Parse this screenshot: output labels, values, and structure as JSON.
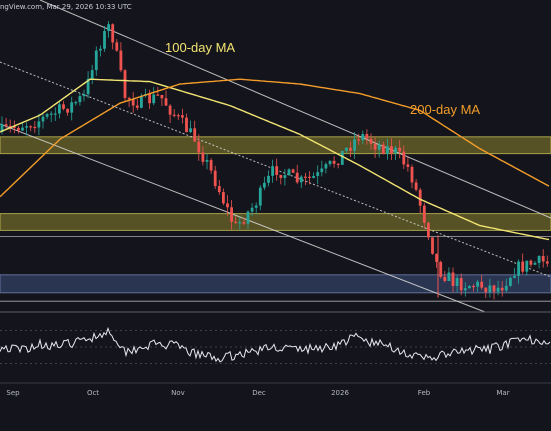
{
  "header": {
    "source_text": "ngView.com, Mar 29, 2026 10:33 UTC"
  },
  "colors": {
    "background": "#14151c",
    "candle_up": "#26a69a",
    "candle_down": "#ef5350",
    "ma100": "#f2e472",
    "ma200": "#f39c2a",
    "zone_supply": "#8c8530",
    "zone_demand": "#3d5180",
    "channel_line": "#d9d9d9",
    "rsi_line": "#e8eaf0"
  },
  "chart_data": {
    "type": "candlestick",
    "title": "",
    "xlabel": "",
    "ylabel": "",
    "grid": false,
    "x_axis": {
      "tick_labels": [
        "Sep",
        "Oct",
        "Nov",
        "Dec",
        "2026",
        "Feb",
        "Mar"
      ]
    },
    "annotations": [
      {
        "text": "100-day MA",
        "color": "#f2e472"
      },
      {
        "text": "200-day MA",
        "color": "#f39c2a"
      }
    ],
    "price_trend_anchors": [
      [
        0,
        0.55
      ],
      [
        22,
        0.52
      ],
      [
        40,
        0.5
      ],
      [
        55,
        0.47
      ],
      [
        70,
        0.44
      ],
      [
        85,
        0.4
      ],
      [
        95,
        0.22
      ],
      [
        110,
        0.1
      ],
      [
        125,
        0.4
      ],
      [
        140,
        0.43
      ],
      [
        160,
        0.4
      ],
      [
        175,
        0.48
      ],
      [
        195,
        0.58
      ],
      [
        215,
        0.75
      ],
      [
        235,
        0.95
      ],
      [
        255,
        0.85
      ],
      [
        275,
        0.7
      ],
      [
        300,
        0.76
      ],
      [
        320,
        0.73
      ],
      [
        340,
        0.65
      ],
      [
        360,
        0.56
      ],
      [
        375,
        0.6
      ],
      [
        395,
        0.63
      ],
      [
        410,
        0.71
      ],
      [
        428,
        0.96
      ],
      [
        438,
        1.12
      ],
      [
        455,
        1.18
      ],
      [
        480,
        1.19
      ],
      [
        500,
        1.2
      ],
      [
        515,
        1.12
      ],
      [
        530,
        1.1
      ],
      [
        545,
        1.09
      ],
      [
        551,
        1.11
      ]
    ],
    "rsi_trend_anchors": [
      [
        0,
        0.5
      ],
      [
        20,
        0.45
      ],
      [
        40,
        0.55
      ],
      [
        60,
        0.52
      ],
      [
        80,
        0.6
      ],
      [
        100,
        0.72
      ],
      [
        110,
        0.78
      ],
      [
        125,
        0.42
      ],
      [
        140,
        0.5
      ],
      [
        155,
        0.55
      ],
      [
        175,
        0.52
      ],
      [
        195,
        0.38
      ],
      [
        220,
        0.3
      ],
      [
        240,
        0.38
      ],
      [
        260,
        0.45
      ],
      [
        275,
        0.5
      ],
      [
        300,
        0.46
      ],
      [
        320,
        0.48
      ],
      [
        340,
        0.55
      ],
      [
        355,
        0.68
      ],
      [
        370,
        0.58
      ],
      [
        390,
        0.52
      ],
      [
        405,
        0.4
      ],
      [
        420,
        0.3
      ],
      [
        435,
        0.33
      ],
      [
        450,
        0.38
      ],
      [
        470,
        0.44
      ],
      [
        490,
        0.46
      ],
      [
        505,
        0.55
      ],
      [
        520,
        0.6
      ],
      [
        535,
        0.63
      ],
      [
        545,
        0.62
      ],
      [
        551,
        0.6
      ]
    ],
    "ma100_anchors": [
      [
        0,
        0.55
      ],
      [
        40,
        0.48
      ],
      [
        90,
        0.33
      ],
      [
        150,
        0.34
      ],
      [
        230,
        0.44
      ],
      [
        300,
        0.56
      ],
      [
        360,
        0.69
      ],
      [
        420,
        0.83
      ],
      [
        480,
        0.94
      ],
      [
        551,
        1.0
      ]
    ],
    "ma200_anchors": [
      [
        0,
        0.82
      ],
      [
        60,
        0.58
      ],
      [
        120,
        0.43
      ],
      [
        180,
        0.35
      ],
      [
        240,
        0.33
      ],
      [
        300,
        0.35
      ],
      [
        360,
        0.39
      ],
      [
        420,
        0.46
      ],
      [
        480,
        0.62
      ],
      [
        551,
        0.78
      ]
    ]
  }
}
